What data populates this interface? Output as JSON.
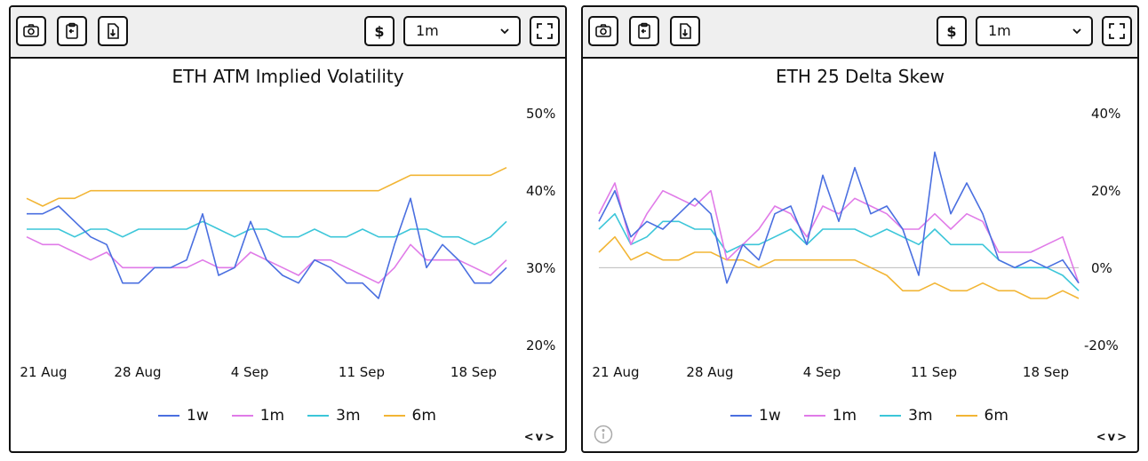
{
  "toolbar": {
    "currency_label": "$",
    "range_value": "1m"
  },
  "panels": [
    {
      "title": "ETH ATM Implied Volatility",
      "y_ticks": [
        "50%",
        "40%",
        "30%",
        "20%"
      ]
    },
    {
      "title": "ETH 25 Delta Skew",
      "y_ticks": [
        "40%",
        "20%",
        "0%",
        "-20%"
      ]
    }
  ],
  "x_ticks": [
    "21 Aug",
    "28 Aug",
    "4 Sep",
    "11 Sep",
    "18 Sep"
  ],
  "legend": [
    "1w",
    "1m",
    "3m",
    "6m"
  ],
  "nav_label": "<v>",
  "colors": {
    "1w": "#4a6fe0",
    "1m": "#e07be8",
    "3m": "#3cc6d9",
    "6m": "#f2b534"
  },
  "chart_data": [
    {
      "type": "line",
      "title": "ETH ATM Implied Volatility",
      "x": [
        "21 Aug",
        "22 Aug",
        "23 Aug",
        "24 Aug",
        "25 Aug",
        "26 Aug",
        "27 Aug",
        "28 Aug",
        "29 Aug",
        "30 Aug",
        "31 Aug",
        "1 Sep",
        "2 Sep",
        "3 Sep",
        "4 Sep",
        "5 Sep",
        "6 Sep",
        "7 Sep",
        "8 Sep",
        "9 Sep",
        "10 Sep",
        "11 Sep",
        "12 Sep",
        "13 Sep",
        "14 Sep",
        "15 Sep",
        "16 Sep",
        "17 Sep",
        "18 Sep",
        "19 Sep",
        "20 Sep"
      ],
      "ylim": [
        20,
        50
      ],
      "series": [
        {
          "name": "1w",
          "values": [
            37,
            37,
            38,
            36,
            34,
            33,
            28,
            28,
            30,
            30,
            31,
            37,
            29,
            30,
            36,
            31,
            29,
            28,
            31,
            30,
            28,
            28,
            26,
            33,
            39,
            30,
            33,
            31,
            28,
            28,
            30
          ]
        },
        {
          "name": "1m",
          "values": [
            34,
            33,
            33,
            32,
            31,
            32,
            30,
            30,
            30,
            30,
            30,
            31,
            30,
            30,
            32,
            31,
            30,
            29,
            31,
            31,
            30,
            29,
            28,
            30,
            33,
            31,
            31,
            31,
            30,
            29,
            31
          ]
        },
        {
          "name": "3m",
          "values": [
            35,
            35,
            35,
            34,
            35,
            35,
            34,
            35,
            35,
            35,
            35,
            36,
            35,
            34,
            35,
            35,
            34,
            34,
            35,
            34,
            34,
            35,
            34,
            34,
            35,
            35,
            34,
            34,
            33,
            34,
            36
          ]
        },
        {
          "name": "6m",
          "values": [
            39,
            38,
            39,
            39,
            40,
            40,
            40,
            40,
            40,
            40,
            40,
            40,
            40,
            40,
            40,
            40,
            40,
            40,
            40,
            40,
            40,
            40,
            40,
            41,
            42,
            42,
            42,
            42,
            42,
            42,
            43
          ]
        }
      ]
    },
    {
      "type": "line",
      "title": "ETH 25 Delta Skew",
      "x": [
        "21 Aug",
        "22 Aug",
        "23 Aug",
        "24 Aug",
        "25 Aug",
        "26 Aug",
        "27 Aug",
        "28 Aug",
        "29 Aug",
        "30 Aug",
        "31 Aug",
        "1 Sep",
        "2 Sep",
        "3 Sep",
        "4 Sep",
        "5 Sep",
        "6 Sep",
        "7 Sep",
        "8 Sep",
        "9 Sep",
        "10 Sep",
        "11 Sep",
        "12 Sep",
        "13 Sep",
        "14 Sep",
        "15 Sep",
        "16 Sep",
        "17 Sep",
        "18 Sep",
        "19 Sep",
        "20 Sep"
      ],
      "ylim": [
        -20,
        40
      ],
      "series": [
        {
          "name": "1w",
          "values": [
            12,
            20,
            8,
            12,
            10,
            14,
            18,
            14,
            -4,
            6,
            2,
            14,
            16,
            6,
            24,
            12,
            26,
            14,
            16,
            10,
            -2,
            30,
            14,
            22,
            14,
            2,
            0,
            2,
            0,
            2,
            -4
          ]
        },
        {
          "name": "1m",
          "values": [
            14,
            22,
            6,
            14,
            20,
            18,
            16,
            20,
            2,
            6,
            10,
            16,
            14,
            8,
            16,
            14,
            18,
            16,
            14,
            10,
            10,
            14,
            10,
            14,
            12,
            4,
            4,
            4,
            6,
            8,
            -4
          ]
        },
        {
          "name": "3m",
          "values": [
            10,
            14,
            6,
            8,
            12,
            12,
            10,
            10,
            4,
            6,
            6,
            8,
            10,
            6,
            10,
            10,
            10,
            8,
            10,
            8,
            6,
            10,
            6,
            6,
            6,
            2,
            0,
            0,
            0,
            -2,
            -6
          ]
        },
        {
          "name": "6m",
          "values": [
            4,
            8,
            2,
            4,
            2,
            2,
            4,
            4,
            2,
            2,
            0,
            2,
            2,
            2,
            2,
            2,
            2,
            0,
            -2,
            -6,
            -6,
            -4,
            -6,
            -6,
            -4,
            -6,
            -6,
            -8,
            -8,
            -6,
            -8
          ]
        }
      ]
    }
  ]
}
